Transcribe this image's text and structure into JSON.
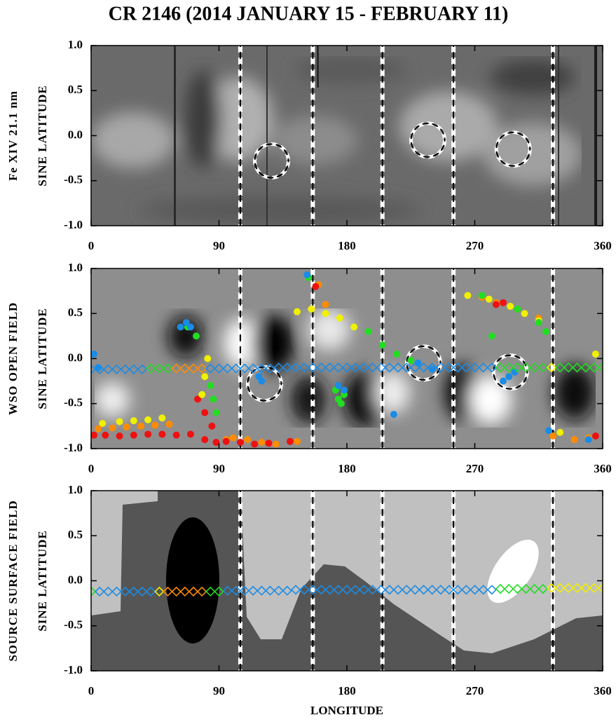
{
  "chart_data": [
    {
      "type": "image",
      "title": "CR 2146  (2014  JANUARY  15  -  FEBRUARY  11)",
      "ylabel": [
        "Fe XIV 21.1 nm",
        "SINE  LATITUDE"
      ],
      "xlim": [
        0,
        360
      ],
      "ylim": [
        -1,
        1
      ],
      "xticks": [
        0,
        90,
        180,
        270,
        360
      ],
      "yticks": [
        {
          "value": 1,
          "label": "1.0"
        },
        {
          "value": 0.5,
          "label": "0.5"
        },
        {
          "value": 0,
          "label": "0.0"
        },
        {
          "value": -0.5,
          "label": "-0.5"
        },
        {
          "value": -1,
          "label": "-1.0"
        }
      ],
      "dashed_longitudes": [
        105,
        156,
        205,
        255,
        325
      ],
      "circles": {
        "x": [
          127,
          237,
          297
        ],
        "values": [
          -0.28,
          -0.05,
          -0.15
        ]
      }
    },
    {
      "type": "scatter",
      "ylabel": [
        "WSO  OPEN  FIELD",
        "SINE  LATITUDE"
      ],
      "xlim": [
        0,
        360
      ],
      "ylim": [
        -1,
        1
      ],
      "xticks": [
        0,
        90,
        180,
        270,
        360
      ],
      "yticks": [
        {
          "value": 1,
          "label": "1.0"
        },
        {
          "value": 0.5,
          "label": "0.5"
        },
        {
          "value": 0,
          "label": "0.0"
        },
        {
          "value": -0.5,
          "label": "-0.5"
        },
        {
          "value": -1,
          "label": "-1.0"
        }
      ],
      "dashed_longitudes": [
        105,
        156,
        205,
        255,
        325
      ],
      "circles": {
        "x": [
          122,
          234,
          295
        ],
        "values": [
          -0.28,
          -0.05,
          -0.15
        ]
      },
      "series": [
        {
          "color": "#ff8c00",
          "marker": "dot",
          "x": [
            5,
            15,
            25,
            35,
            45,
            55,
            95,
            100,
            110,
            120,
            130,
            145,
            160,
            165,
            275,
            285,
            300,
            315,
            325,
            340,
            350
          ],
          "values": [
            -0.78,
            -0.77,
            -0.76,
            -0.75,
            -0.74,
            -0.73,
            -0.9,
            -0.88,
            -0.9,
            -0.93,
            -0.95,
            -0.92,
            0.82,
            0.6,
            0.68,
            0.62,
            0.55,
            0.45,
            -0.86,
            -0.9,
            -0.88
          ]
        },
        {
          "color": "#ee1111",
          "marker": "dot",
          "x": [
            2,
            10,
            20,
            30,
            40,
            50,
            60,
            70,
            80,
            88,
            95,
            105,
            115,
            125,
            140,
            85,
            80,
            75,
            285,
            290,
            355,
            158
          ],
          "values": [
            -0.85,
            -0.85,
            -0.86,
            -0.85,
            -0.84,
            -0.84,
            -0.85,
            -0.84,
            -0.9,
            -0.93,
            -0.92,
            -0.93,
            -0.95,
            -0.94,
            -0.92,
            -0.75,
            -0.6,
            -0.45,
            0.6,
            0.62,
            -0.86,
            0.8
          ]
        },
        {
          "color": "#f0f000",
          "marker": "dot",
          "x": [
            8,
            20,
            30,
            40,
            50,
            78,
            80,
            82,
            145,
            155,
            165,
            175,
            185,
            265,
            280,
            295,
            305,
            315,
            330,
            355
          ],
          "values": [
            -0.72,
            -0.7,
            -0.69,
            -0.68,
            -0.66,
            -0.4,
            -0.2,
            0.0,
            0.52,
            0.55,
            0.5,
            0.45,
            0.35,
            0.7,
            0.66,
            0.58,
            0.5,
            0.42,
            -0.82,
            0.05
          ]
        },
        {
          "color": "#22dd22",
          "marker": "dot",
          "x": [
            68,
            74,
            84,
            86,
            88,
            172,
            174,
            176,
            178,
            195,
            205,
            215,
            225,
            275,
            282,
            300,
            315,
            320,
            153
          ],
          "values": [
            0.35,
            0.25,
            -0.3,
            -0.45,
            -0.6,
            -0.35,
            -0.45,
            -0.5,
            -0.4,
            0.3,
            0.15,
            0.05,
            -0.02,
            0.7,
            0.25,
            0.55,
            0.4,
            0.3,
            0.9
          ]
        },
        {
          "color": "#1a8ce6",
          "marker": "dot",
          "x": [
            2,
            5,
            63,
            67,
            70,
            118,
            120,
            174,
            178,
            213,
            230,
            240,
            290,
            294,
            298,
            322,
            350,
            152
          ],
          "values": [
            0.05,
            -0.1,
            0.35,
            0.4,
            0.35,
            -0.2,
            -0.25,
            -0.3,
            -0.35,
            -0.62,
            -0.05,
            -0.12,
            -0.25,
            -0.2,
            -0.15,
            -0.8,
            -0.9,
            0.93
          ]
        },
        {
          "color": "#1a8ce6",
          "marker": "diamond",
          "x": [
            0,
            6,
            12,
            18,
            24,
            30,
            36
          ],
          "values": [
            -0.12,
            -0.12,
            -0.12,
            -0.12,
            -0.12,
            -0.12,
            -0.12
          ]
        },
        {
          "color": "#22dd22",
          "marker": "diamond",
          "x": [
            42,
            48,
            54
          ],
          "values": [
            -0.11,
            -0.11,
            -0.11
          ]
        },
        {
          "color": "#ff8c00",
          "marker": "diamond",
          "x": [
            60,
            66,
            72,
            78
          ],
          "values": [
            -0.11,
            -0.11,
            -0.11,
            -0.11
          ]
        },
        {
          "color": "#1a8ce6",
          "marker": "diamond",
          "x": [
            84,
            90,
            96,
            102,
            108,
            114,
            120,
            126,
            132,
            138,
            144,
            150,
            156,
            162,
            168,
            174,
            180,
            186,
            192,
            198,
            204,
            210,
            216,
            222,
            228,
            234,
            240,
            246,
            252,
            258,
            264,
            270,
            276,
            282
          ],
          "values": [
            -0.11,
            -0.11,
            -0.11,
            -0.11,
            -0.11,
            -0.11,
            -0.11,
            -0.11,
            -0.1,
            -0.1,
            -0.1,
            -0.1,
            -0.1,
            -0.1,
            -0.1,
            -0.1,
            -0.1,
            -0.1,
            -0.1,
            -0.1,
            -0.1,
            -0.1,
            -0.1,
            -0.1,
            -0.1,
            -0.1,
            -0.1,
            -0.1,
            -0.1,
            -0.1,
            -0.1,
            -0.1,
            -0.1,
            -0.1
          ]
        },
        {
          "color": "#22dd22",
          "marker": "diamond",
          "x": [
            288,
            294,
            300,
            306,
            312,
            318
          ],
          "values": [
            -0.1,
            -0.1,
            -0.1,
            -0.1,
            -0.1,
            -0.1
          ]
        },
        {
          "color": "#f0f000",
          "marker": "diamond",
          "x": [
            324
          ],
          "values": [
            -0.1
          ]
        },
        {
          "color": "#22dd22",
          "marker": "diamond",
          "x": [
            330,
            336,
            342,
            348,
            354,
            360
          ],
          "values": [
            -0.1,
            -0.1,
            -0.1,
            -0.1,
            -0.1,
            -0.1
          ]
        }
      ]
    },
    {
      "type": "scatter",
      "ylabel": [
        "SOURCE  SURFACE  FIELD",
        "SINE  LATITUDE"
      ],
      "xlabel": "LONGITUDE",
      "xlim": [
        0,
        360
      ],
      "ylim": [
        -1,
        1
      ],
      "xticks": [
        0,
        90,
        180,
        270,
        360
      ],
      "yticks": [
        {
          "value": 1,
          "label": "1.0"
        },
        {
          "value": 0.5,
          "label": "0.5"
        },
        {
          "value": 0,
          "label": "0.0"
        },
        {
          "value": -0.5,
          "label": "-0.5"
        },
        {
          "value": -1,
          "label": "-1.0"
        }
      ],
      "dashed_longitudes": [
        105,
        156,
        205,
        255,
        325
      ],
      "series": [
        {
          "color": "#22dd22",
          "marker": "diamond",
          "x": [
            0
          ],
          "values": [
            -0.12
          ]
        },
        {
          "color": "#1a8ce6",
          "marker": "diamond",
          "x": [
            6,
            12,
            18,
            24,
            30,
            36,
            42
          ],
          "values": [
            -0.12,
            -0.12,
            -0.12,
            -0.12,
            -0.12,
            -0.12,
            -0.12
          ]
        },
        {
          "color": "#f0f000",
          "marker": "diamond",
          "x": [
            48
          ],
          "values": [
            -0.12
          ]
        },
        {
          "color": "#ff8c00",
          "marker": "diamond",
          "x": [
            54,
            60,
            66,
            72,
            78
          ],
          "values": [
            -0.12,
            -0.12,
            -0.12,
            -0.12,
            -0.12
          ]
        },
        {
          "color": "#22dd22",
          "marker": "diamond",
          "x": [
            84,
            90
          ],
          "values": [
            -0.12,
            -0.12
          ]
        },
        {
          "color": "#1a8ce6",
          "marker": "diamond",
          "x": [
            96,
            102,
            108,
            114,
            120,
            126,
            132,
            138,
            144,
            150,
            156,
            162,
            168,
            174,
            180,
            186,
            192,
            198,
            204,
            210,
            216,
            222,
            228,
            234,
            240,
            246,
            252,
            258,
            264,
            270,
            276,
            282
          ],
          "values": [
            -0.11,
            -0.11,
            -0.11,
            -0.11,
            -0.11,
            -0.11,
            -0.11,
            -0.11,
            -0.1,
            -0.1,
            -0.1,
            -0.1,
            -0.1,
            -0.1,
            -0.1,
            -0.1,
            -0.1,
            -0.1,
            -0.1,
            -0.1,
            -0.1,
            -0.1,
            -0.1,
            -0.1,
            -0.1,
            -0.1,
            -0.1,
            -0.1,
            -0.1,
            -0.1,
            -0.1,
            -0.1
          ]
        },
        {
          "color": "#22dd22",
          "marker": "diamond",
          "x": [
            288,
            294,
            300,
            306,
            312,
            318
          ],
          "values": [
            -0.09,
            -0.09,
            -0.09,
            -0.09,
            -0.09,
            -0.09
          ]
        },
        {
          "color": "#f0f000",
          "marker": "diamond",
          "x": [
            324,
            330,
            336,
            342,
            348,
            354,
            360
          ],
          "values": [
            -0.08,
            -0.08,
            -0.08,
            -0.08,
            -0.08,
            -0.08,
            -0.08
          ]
        }
      ]
    }
  ]
}
